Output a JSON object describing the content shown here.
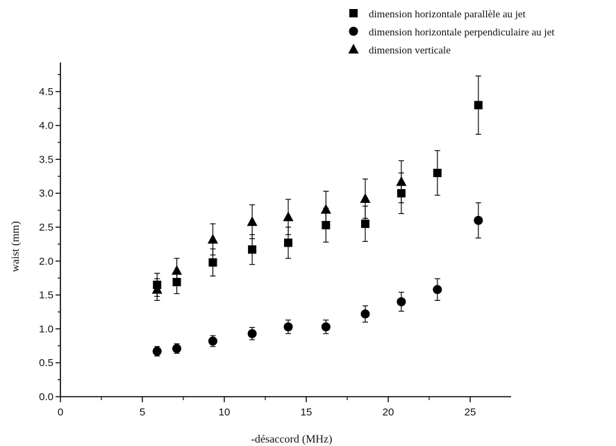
{
  "chart_data": {
    "type": "scatter",
    "xlabel": "-désaccord (MHz)",
    "ylabel": "waist (mm)",
    "xlim": [
      0,
      27.5
    ],
    "ylim": [
      0,
      5.0
    ],
    "x_ticks": [
      "0",
      "5",
      "10",
      "15",
      "20",
      "25"
    ],
    "y_ticks": [
      "0.0",
      "0.5",
      "1.0",
      "1.5",
      "2.0",
      "2.5",
      "3.0",
      "3.5",
      "4.0",
      "4.5"
    ],
    "legend_position": "top-right",
    "error_bars": true,
    "series": [
      {
        "name": "dimension horizontale parallèle au jet",
        "marker": "square",
        "x": [
          5.9,
          7.1,
          9.3,
          11.7,
          13.9,
          16.2,
          18.6,
          20.8,
          23.0,
          25.5
        ],
        "y": [
          1.65,
          1.69,
          1.98,
          2.17,
          2.27,
          2.53,
          2.55,
          3.0,
          3.3,
          4.3
        ],
        "err": [
          0.17,
          0.17,
          0.2,
          0.22,
          0.23,
          0.25,
          0.26,
          0.3,
          0.33,
          0.43
        ]
      },
      {
        "name": "dimension horizontale perpendiculaire au jet",
        "marker": "circle",
        "x": [
          5.9,
          7.1,
          9.3,
          11.7,
          13.9,
          16.2,
          18.6,
          20.8,
          23.0,
          25.5
        ],
        "y": [
          0.67,
          0.71,
          0.82,
          0.93,
          1.03,
          1.03,
          1.22,
          1.4,
          1.58,
          2.6
        ],
        "err": [
          0.07,
          0.07,
          0.08,
          0.09,
          0.1,
          0.1,
          0.12,
          0.14,
          0.16,
          0.26
        ]
      },
      {
        "name": "dimension verticale",
        "marker": "triangle",
        "x": [
          5.9,
          7.1,
          9.3,
          11.7,
          13.9,
          16.2,
          18.6,
          20.8
        ],
        "y": [
          1.58,
          1.86,
          2.32,
          2.58,
          2.65,
          2.76,
          2.92,
          3.17
        ],
        "err": [
          0.16,
          0.18,
          0.23,
          0.25,
          0.26,
          0.27,
          0.29,
          0.31
        ]
      }
    ]
  }
}
